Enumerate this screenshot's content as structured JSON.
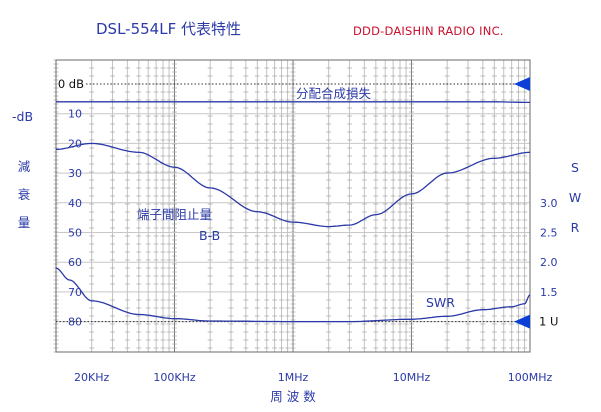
{
  "chart_data": {
    "type": "line",
    "title": "DSL-554LF  代表特性",
    "manufacturer": "DDD-DAISHIN RADIO INC.",
    "x_axis": {
      "label": "周 波 数",
      "scale": "log",
      "range_hz": [
        10000,
        100000000
      ],
      "tick_labels": [
        {
          "value": 20000,
          "label": "20KHz"
        },
        {
          "value": 100000,
          "label": "100KHz"
        },
        {
          "value": 1000000,
          "label": "1MHz"
        },
        {
          "value": 10000000,
          "label": "10MHz"
        },
        {
          "value": 100000000,
          "label": "100MHz"
        }
      ]
    },
    "left_axis": {
      "unit_label": "-dB",
      "label": "減衰量",
      "range": [
        0,
        90
      ],
      "tick_labels": [
        {
          "value": 0,
          "label": "0 dB"
        },
        {
          "value": 10,
          "label": "10"
        },
        {
          "value": 20,
          "label": "20"
        },
        {
          "value": 30,
          "label": "30"
        },
        {
          "value": 40,
          "label": "40"
        },
        {
          "value": 50,
          "label": "50"
        },
        {
          "value": 60,
          "label": "60"
        },
        {
          "value": 70,
          "label": "70"
        },
        {
          "value": 80,
          "label": "80"
        }
      ]
    },
    "right_axis": {
      "label": "SWR",
      "tick_labels": [
        {
          "value": 3.0,
          "label": "3.0"
        },
        {
          "value": 2.5,
          "label": "2.5"
        },
        {
          "value": 2.0,
          "label": "2.0"
        },
        {
          "value": 1.5,
          "label": "1.5"
        },
        {
          "value": 1.0,
          "label": "1 U"
        }
      ],
      "calibration": [
        {
          "swr": 1.0,
          "db": 80
        },
        {
          "swr": 1.5,
          "db": 70
        },
        {
          "swr": 2.0,
          "db": 60
        },
        {
          "swr": 2.5,
          "db": 50
        },
        {
          "swr": 3.0,
          "db": 40
        }
      ]
    },
    "series": [
      {
        "name": "分配合成損失",
        "axis": "left",
        "points": [
          [
            10000,
            6.0
          ],
          [
            20000,
            6.0
          ],
          [
            100000,
            6.0
          ],
          [
            1000000,
            6.0
          ],
          [
            10000000,
            6.0
          ],
          [
            50000000,
            6.0
          ],
          [
            100000000,
            6.2
          ]
        ]
      },
      {
        "name": "端子間阻止量",
        "sub_label": "B-B",
        "axis": "left",
        "points": [
          [
            10000,
            22.0
          ],
          [
            20000,
            20.0
          ],
          [
            50000,
            23.0
          ],
          [
            100000,
            28.0
          ],
          [
            200000,
            35.0
          ],
          [
            500000,
            43.0
          ],
          [
            1000000,
            46.5
          ],
          [
            2000000,
            48.0
          ],
          [
            3000000,
            47.5
          ],
          [
            5000000,
            44.0
          ],
          [
            10000000,
            37.0
          ],
          [
            20000000,
            30.0
          ],
          [
            50000000,
            25.0
          ],
          [
            100000000,
            23.0
          ]
        ]
      },
      {
        "name": "SWR",
        "axis": "right",
        "points": [
          [
            10000,
            1.9
          ],
          [
            13000,
            1.7
          ],
          [
            20000,
            1.35
          ],
          [
            50000,
            1.12
          ],
          [
            100000,
            1.05
          ],
          [
            200000,
            1.01
          ],
          [
            1000000,
            1.0
          ],
          [
            3000000,
            1.0
          ],
          [
            10000000,
            1.04
          ],
          [
            20000000,
            1.09
          ],
          [
            40000000,
            1.2
          ],
          [
            70000000,
            1.25
          ],
          [
            90000000,
            1.3
          ],
          [
            100000000,
            1.45
          ]
        ]
      }
    ],
    "reference_markers": [
      {
        "axis": "left",
        "value": 0,
        "style": "dotted",
        "marker": "triangle"
      },
      {
        "axis": "right",
        "value": 1.0,
        "style": "dotted",
        "marker": "triangle"
      }
    ],
    "grid": true,
    "line_color": "#2b3aa8",
    "accent_color": "#0b3fd6"
  }
}
